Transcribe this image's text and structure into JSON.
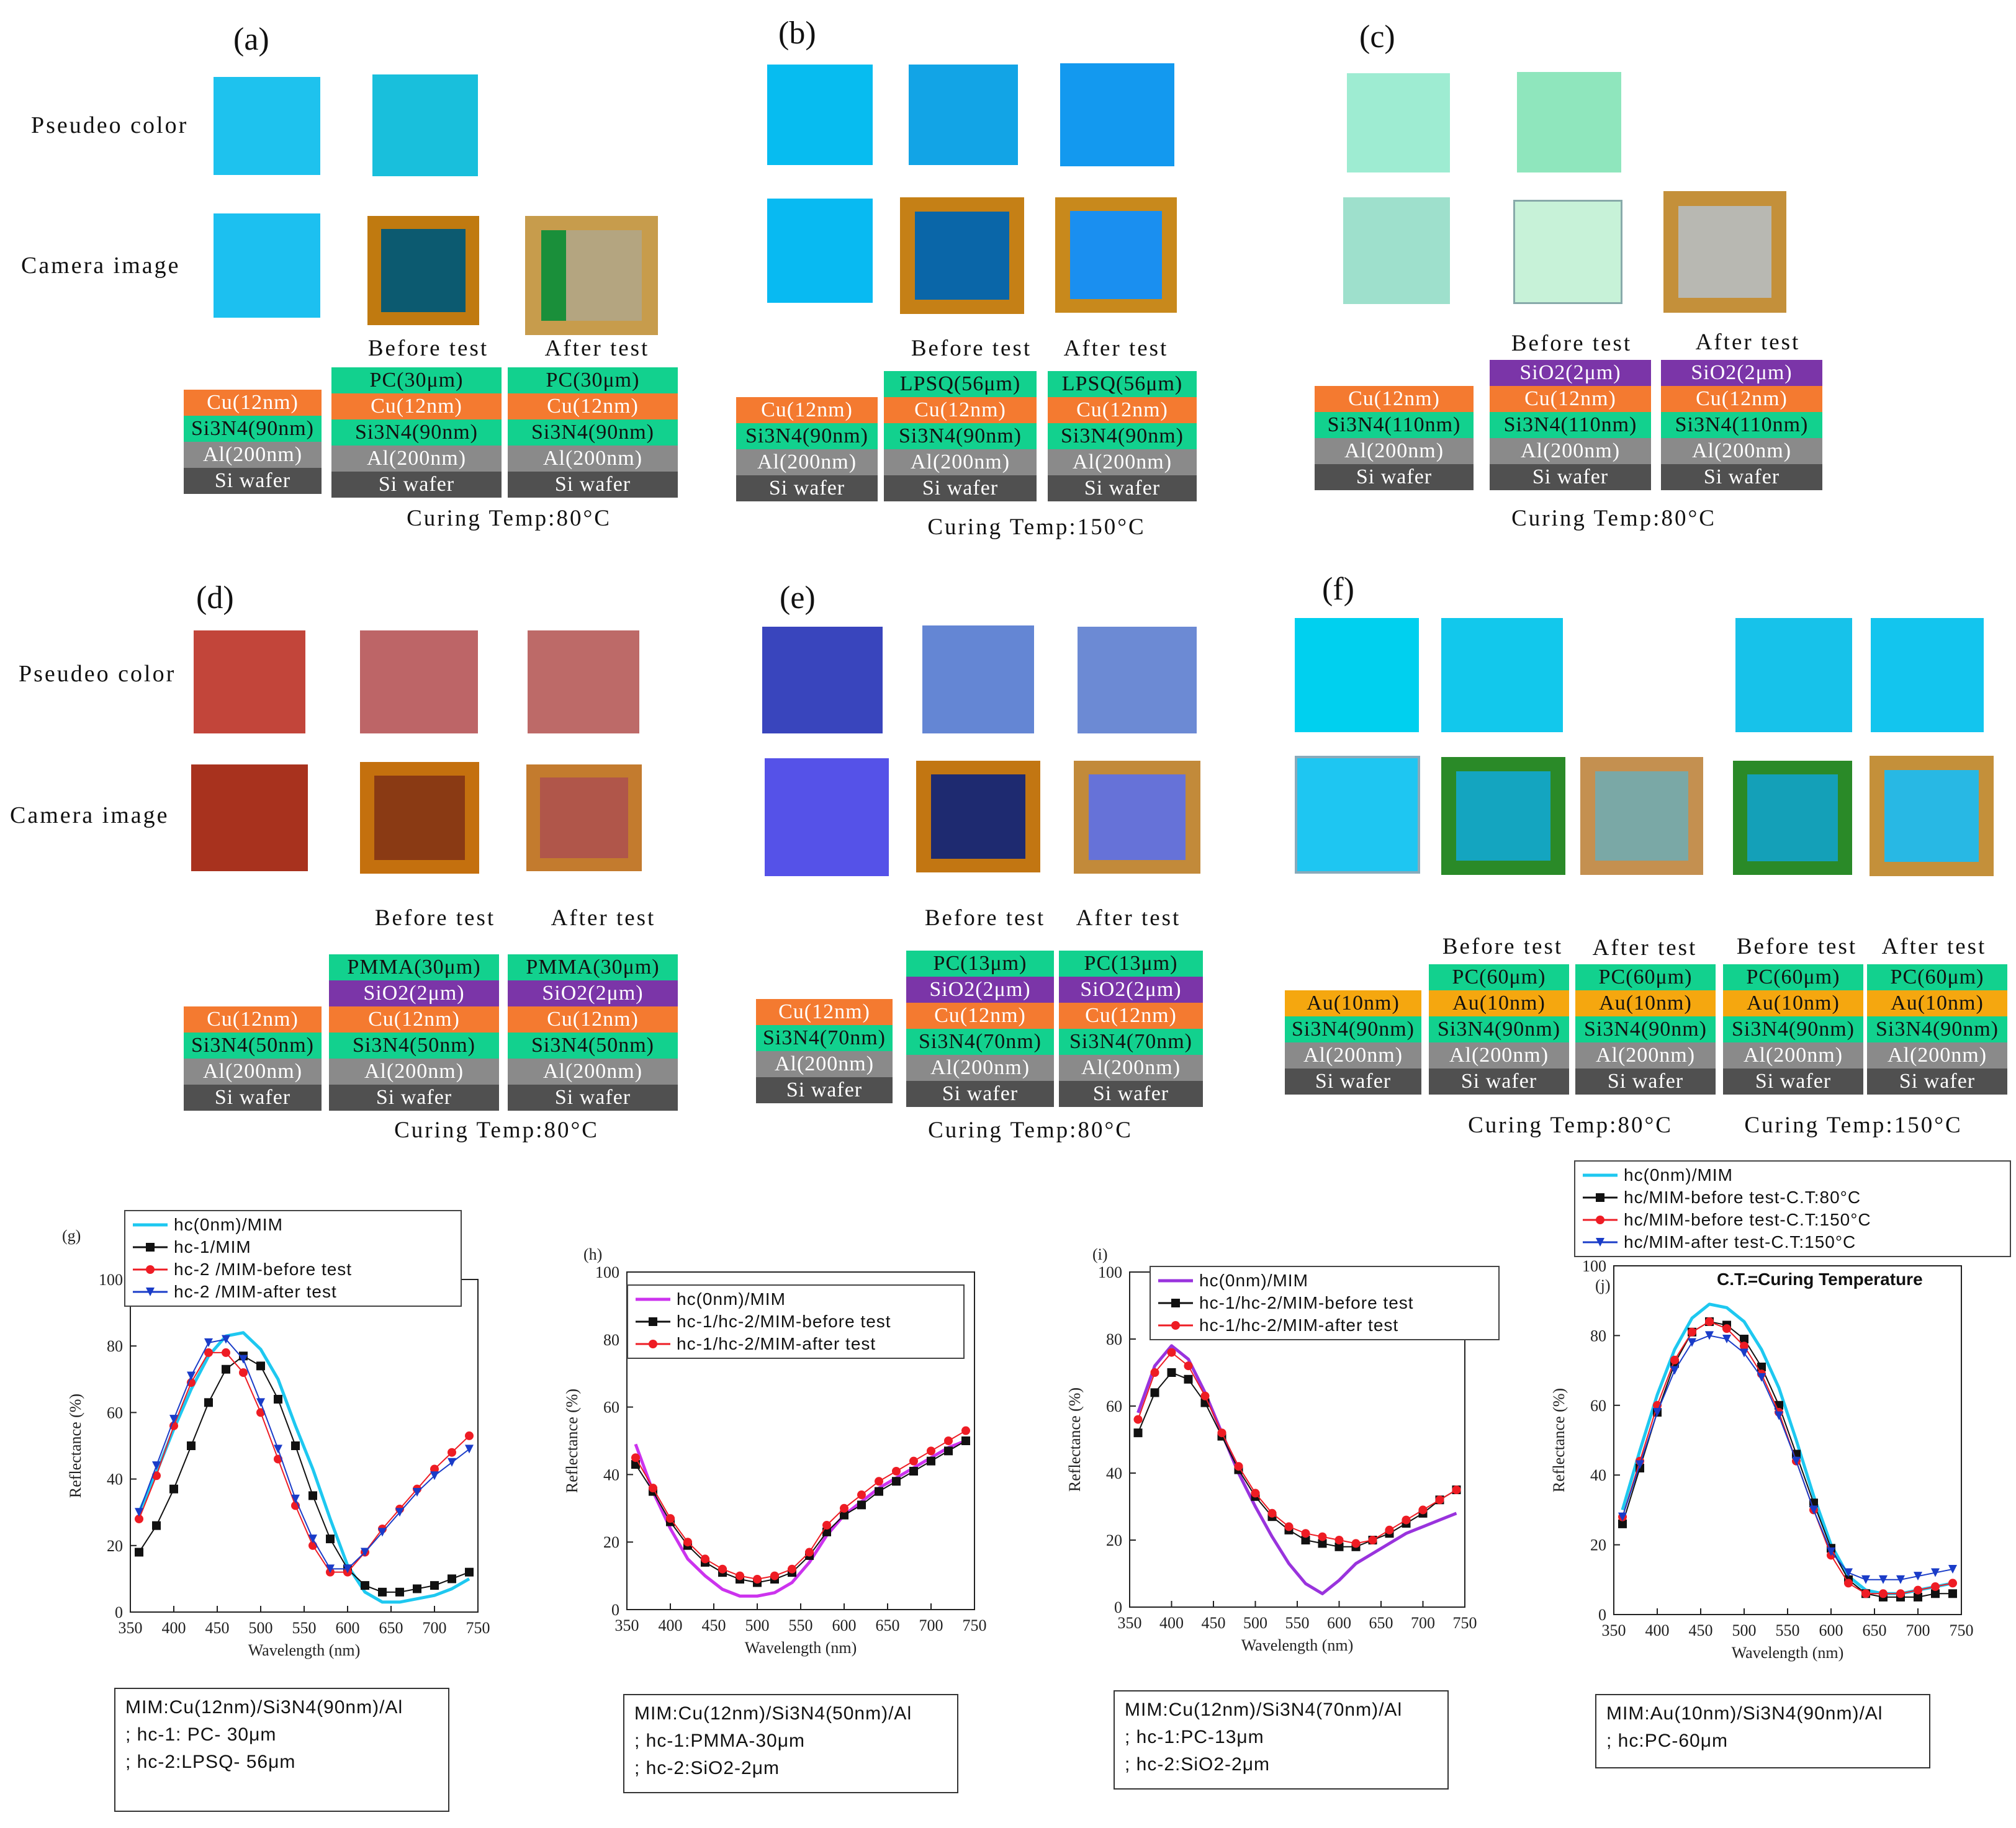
{
  "row_labels": {
    "pseudo": "Pseudeo color",
    "camera": "Camera image"
  },
  "captions": {
    "before": "Before test",
    "after": "After test"
  },
  "panels": {
    "a": {
      "letter": "(a)",
      "curing": "Curing Temp:80°C",
      "stack1": [
        "Cu(12nm)",
        "Si3N4(90nm)",
        "Al(200nm)",
        "Si wafer"
      ],
      "stack2": [
        "PC(30μm)",
        "Cu(12nm)",
        "Si3N4(90nm)",
        "Al(200nm)",
        "Si wafer"
      ],
      "stack3": [
        "PC(30μm)",
        "Cu(12nm)",
        "Si3N4(90nm)",
        "Al(200nm)",
        "Si wafer"
      ]
    },
    "b": {
      "letter": "(b)",
      "curing": "Curing Temp:150°C",
      "stack1": [
        "Cu(12nm)",
        "Si3N4(90nm)",
        "Al(200nm)",
        "Si wafer"
      ],
      "stack2": [
        "LPSQ(56μm)",
        "Cu(12nm)",
        "Si3N4(90nm)",
        "Al(200nm)",
        "Si wafer"
      ],
      "stack3": [
        "LPSQ(56μm)",
        "Cu(12nm)",
        "Si3N4(90nm)",
        "Al(200nm)",
        "Si wafer"
      ]
    },
    "c": {
      "letter": "(c)",
      "curing": "Curing Temp:80°C",
      "stack1": [
        "Cu(12nm)",
        "Si3N4(110nm)",
        "Al(200nm)",
        "Si wafer"
      ],
      "stack2": [
        "SiO2(2μm)",
        "Cu(12nm)",
        "Si3N4(110nm)",
        "Al(200nm)",
        "Si wafer"
      ],
      "stack3": [
        "SiO2(2μm)",
        "Cu(12nm)",
        "Si3N4(110nm)",
        "Al(200nm)",
        "Si wafer"
      ]
    },
    "d": {
      "letter": "(d)",
      "curing": "Curing Temp:80°C",
      "stack1": [
        "Cu(12nm)",
        "Si3N4(50nm)",
        "Al(200nm)",
        "Si wafer"
      ],
      "stack2": [
        "PMMA(30μm)",
        "SiO2(2μm)",
        "Cu(12nm)",
        "Si3N4(50nm)",
        "Al(200nm)",
        "Si wafer"
      ],
      "stack3": [
        "PMMA(30μm)",
        "SiO2(2μm)",
        "Cu(12nm)",
        "Si3N4(50nm)",
        "Al(200nm)",
        "Si wafer"
      ]
    },
    "e": {
      "letter": "(e)",
      "curing": "Curing Temp:80°C",
      "stack1": [
        "Cu(12nm)",
        "Si3N4(70nm)",
        "Al(200nm)",
        "Si wafer"
      ],
      "stack2": [
        "PC(13μm)",
        "SiO2(2μm)",
        "Cu(12nm)",
        "Si3N4(70nm)",
        "Al(200nm)",
        "Si wafer"
      ],
      "stack3": [
        "PC(13μm)",
        "SiO2(2μm)",
        "Cu(12nm)",
        "Si3N4(70nm)",
        "Al(200nm)",
        "Si wafer"
      ]
    },
    "f": {
      "letter": "(f)",
      "curing1": "Curing Temp:80°C",
      "curing2": "Curing Temp:150°C",
      "stack1": [
        "Au(10nm)",
        "Si3N4(90nm)",
        "Al(200nm)",
        "Si wafer"
      ],
      "stack2": [
        "PC(60μm)",
        "Au(10nm)",
        "Si3N4(90nm)",
        "Al(200nm)",
        "Si wafer"
      ]
    }
  },
  "colors": {
    "a": [
      "#1ec2ee",
      "#19bfdc"
    ],
    "b": [
      "#07bcf0",
      "#12a4e6",
      "#1399ef"
    ],
    "c": [
      "#9eecd2",
      "#8fe6bd"
    ],
    "d": [
      "#c2453a",
      "#bd6567",
      "#bd6a68"
    ],
    "e": [
      "#3945bd",
      "#6486d4",
      "#6c8ad4"
    ],
    "f": [
      "#00d0ef",
      "#12c8ec",
      "#17c2ea",
      "#13c5ee"
    ]
  },
  "chart_data": [
    {
      "panel": "(g)",
      "type": "line",
      "xlabel": "Wavelength (nm)",
      "ylabel": "Reflectance (%)",
      "xlim": [
        350,
        750
      ],
      "ylim": [
        0,
        100
      ],
      "xticks": [
        350,
        400,
        450,
        500,
        550,
        600,
        650,
        700,
        750
      ],
      "yticks": [
        0,
        20,
        40,
        60,
        80,
        100
      ],
      "x": [
        360,
        380,
        400,
        420,
        440,
        460,
        480,
        500,
        520,
        540,
        560,
        580,
        600,
        620,
        640,
        660,
        680,
        700,
        720,
        740
      ],
      "series": [
        {
          "name": "hc(0nm)/MIM",
          "style": "line",
          "color": "#1ec8f0",
          "values": [
            30,
            42,
            55,
            67,
            77,
            83,
            84,
            79,
            70,
            56,
            43,
            28,
            14,
            6,
            3,
            3,
            4,
            5,
            7,
            10
          ]
        },
        {
          "name": "hc-1/MIM",
          "style": "square",
          "color": "#111111",
          "values": [
            18,
            26,
            37,
            50,
            63,
            73,
            77,
            74,
            64,
            50,
            35,
            22,
            13,
            8,
            6,
            6,
            7,
            8,
            10,
            12
          ]
        },
        {
          "name": "hc-2 /MIM-before test",
          "style": "circle",
          "color": "#ee1c24",
          "values": [
            28,
            41,
            56,
            69,
            78,
            78,
            72,
            60,
            46,
            32,
            20,
            12,
            12,
            18,
            25,
            31,
            37,
            43,
            48,
            53
          ]
        },
        {
          "name": "hc-2 /MIM-after test",
          "style": "triangle",
          "color": "#1a3cc8",
          "values": [
            30,
            44,
            58,
            71,
            81,
            82,
            76,
            63,
            49,
            34,
            22,
            13,
            13,
            18,
            24,
            30,
            36,
            41,
            45,
            49
          ]
        }
      ],
      "legend": [
        "hc(0nm)/MIM",
        "hc-1/MIM",
        "hc-2 /MIM-before test",
        "hc-2 /MIM-after test"
      ],
      "note_lines": [
        "MIM:Cu(12nm)/Si3N4(90nm)/Al",
        "; hc-1: PC- 30μm",
        "; hc-2:LPSQ- 56μm"
      ]
    },
    {
      "panel": "(h)",
      "type": "line",
      "xlabel": "Wavelength (nm)",
      "ylabel": "Reflectance (%)",
      "xlim": [
        350,
        750
      ],
      "ylim": [
        0,
        100
      ],
      "xticks": [
        350,
        400,
        450,
        500,
        550,
        600,
        650,
        700,
        750
      ],
      "yticks": [
        0,
        20,
        40,
        60,
        80,
        100
      ],
      "x": [
        360,
        380,
        400,
        420,
        440,
        460,
        480,
        500,
        520,
        540,
        560,
        580,
        600,
        620,
        640,
        660,
        680,
        700,
        720,
        740
      ],
      "series": [
        {
          "name": "hc(0nm)/MIM",
          "style": "line",
          "color": "#cc33ee",
          "values": [
            49,
            35,
            24,
            15,
            10,
            6,
            4,
            4,
            5,
            8,
            14,
            22,
            28,
            32,
            36,
            39,
            42,
            45,
            48,
            50
          ]
        },
        {
          "name": "hc-1/hc-2/MIM-before test",
          "style": "square",
          "color": "#111111",
          "values": [
            43,
            35,
            26,
            19,
            14,
            11,
            9,
            8,
            9,
            11,
            16,
            23,
            28,
            31,
            35,
            38,
            41,
            44,
            47,
            50
          ]
        },
        {
          "name": "hc-1/hc-2/MIM-after test",
          "style": "circle",
          "color": "#ee1c24",
          "values": [
            45,
            36,
            27,
            20,
            15,
            12,
            10,
            9,
            10,
            12,
            17,
            25,
            30,
            34,
            38,
            41,
            44,
            47,
            50,
            53
          ]
        }
      ],
      "legend": [
        "hc(0nm)/MIM",
        "hc-1/hc-2/MIM-before test",
        "hc-1/hc-2/MIM-after test"
      ],
      "note_lines": [
        "MIM:Cu(12nm)/Si3N4(50nm)/Al",
        "; hc-1:PMMA-30μm",
        "; hc-2:SiO2-2μm"
      ]
    },
    {
      "panel": "(i)",
      "type": "line",
      "xlabel": "Wavelength (nm)",
      "ylabel": "Reflectance (%)",
      "xlim": [
        350,
        750
      ],
      "ylim": [
        0,
        100
      ],
      "xticks": [
        350,
        400,
        450,
        500,
        550,
        600,
        650,
        700,
        750
      ],
      "yticks": [
        0,
        20,
        40,
        60,
        80,
        100
      ],
      "x": [
        360,
        380,
        400,
        420,
        440,
        460,
        480,
        500,
        520,
        540,
        560,
        580,
        600,
        620,
        640,
        660,
        680,
        700,
        720,
        740
      ],
      "series": [
        {
          "name": "hc(0nm)/MIM",
          "style": "line",
          "color": "#9933dd",
          "values": [
            58,
            72,
            78,
            74,
            64,
            52,
            40,
            30,
            21,
            13,
            7,
            4,
            8,
            13,
            16,
            19,
            22,
            24,
            26,
            28
          ]
        },
        {
          "name": "hc-1/hc-2/MIM-before test",
          "style": "square",
          "color": "#111111",
          "values": [
            52,
            64,
            70,
            68,
            61,
            51,
            41,
            33,
            27,
            23,
            20,
            19,
            18,
            18,
            20,
            22,
            25,
            28,
            32,
            35
          ]
        },
        {
          "name": "hc-1/hc-2/MIM-after test",
          "style": "circle",
          "color": "#ee1c24",
          "values": [
            56,
            70,
            76,
            72,
            63,
            52,
            42,
            34,
            28,
            24,
            22,
            21,
            20,
            19,
            20,
            23,
            26,
            29,
            32,
            35
          ]
        }
      ],
      "legend": [
        "hc(0nm)/MIM",
        "hc-1/hc-2/MIM-before test",
        "hc-1/hc-2/MIM-after test"
      ],
      "note_lines": [
        "MIM:Cu(12nm)/Si3N4(70nm)/Al",
        "; hc-1:PC-13μm",
        "; hc-2:SiO2-2μm"
      ]
    },
    {
      "panel": "(j)",
      "type": "line",
      "xlabel": "Wavelength (nm)",
      "ylabel": "Reflectance (%)",
      "xlim": [
        350,
        750
      ],
      "ylim": [
        0,
        100
      ],
      "xticks": [
        350,
        400,
        450,
        500,
        550,
        600,
        650,
        700,
        750
      ],
      "yticks": [
        0,
        20,
        40,
        60,
        80,
        100
      ],
      "x": [
        360,
        380,
        400,
        420,
        440,
        460,
        480,
        500,
        520,
        540,
        560,
        580,
        600,
        620,
        640,
        660,
        680,
        700,
        720,
        740
      ],
      "series": [
        {
          "name": "hc(0nm)/MIM",
          "style": "line",
          "color": "#1ec8f0",
          "values": [
            30,
            47,
            63,
            76,
            85,
            89,
            88,
            84,
            76,
            65,
            50,
            34,
            20,
            11,
            7,
            6,
            6,
            7,
            8,
            9
          ]
        },
        {
          "name": "hc/MIM-before test-C.T:80°C",
          "style": "square",
          "color": "#111111",
          "values": [
            26,
            42,
            58,
            72,
            81,
            84,
            83,
            79,
            71,
            60,
            46,
            32,
            19,
            10,
            6,
            5,
            5,
            5,
            6,
            6
          ]
        },
        {
          "name": "hc/MIM-before test-C.T:150°C",
          "style": "circle",
          "color": "#ee1c24",
          "values": [
            28,
            44,
            60,
            73,
            81,
            84,
            82,
            77,
            69,
            58,
            44,
            30,
            17,
            9,
            6,
            6,
            6,
            7,
            8,
            9
          ]
        },
        {
          "name": "hc/MIM-after test-C.T:150°C",
          "style": "triangle",
          "color": "#1a3cc8",
          "values": [
            28,
            43,
            58,
            70,
            78,
            80,
            79,
            75,
            68,
            57,
            44,
            30,
            18,
            12,
            10,
            10,
            10,
            11,
            12,
            13
          ]
        }
      ],
      "legend": [
        "hc(0nm)/MIM",
        "hc/MIM-before test-C.T:80°C",
        "hc/MIM-before test-C.T:150°C",
        "hc/MIM-after test-C.T:150°C"
      ],
      "ct_note": "C.T.=Curing Temperature",
      "note_lines": [
        "MIM:Au(10nm)/Si3N4(90nm)/Al",
        "; hc:PC-60μm"
      ]
    }
  ]
}
